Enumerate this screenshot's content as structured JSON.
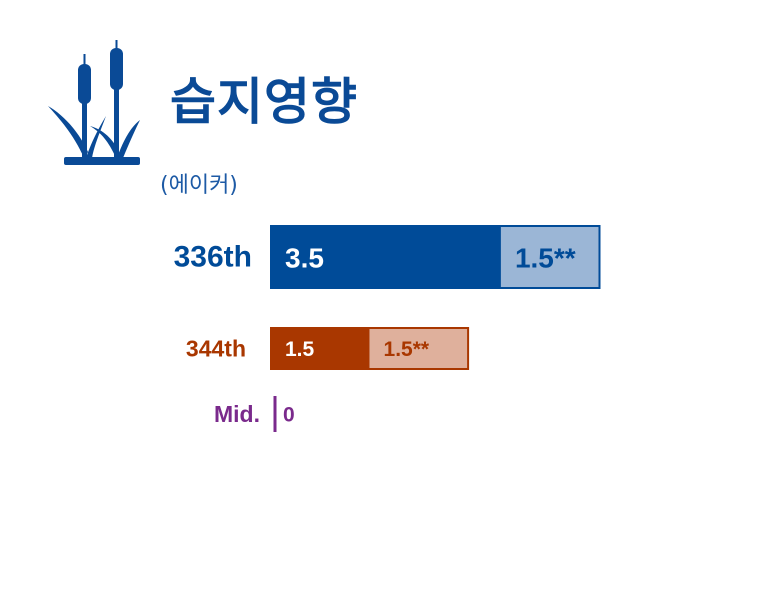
{
  "title": "습지영향",
  "subtitle": "(에이커)",
  "icon": "cattail-wetland-icon",
  "colors": {
    "navy": "#004b98",
    "navy_light": "#9bb6d6",
    "rust": "#a93700",
    "rust_light": "#dfb09c",
    "purple": "#7a2a8c"
  },
  "chart_data": {
    "type": "bar",
    "orientation": "horizontal",
    "stacked": true,
    "categories": [
      "336th",
      "344th",
      "Mid."
    ],
    "series": [
      {
        "values": [
          3.5,
          1.5,
          0
        ],
        "labels": [
          "3.5",
          "1.5",
          "0"
        ]
      },
      {
        "values": [
          1.5,
          1.5,
          0
        ],
        "labels": [
          "1.5**",
          "1.5**",
          ""
        ]
      }
    ],
    "xlim": [
      0,
      5
    ]
  }
}
